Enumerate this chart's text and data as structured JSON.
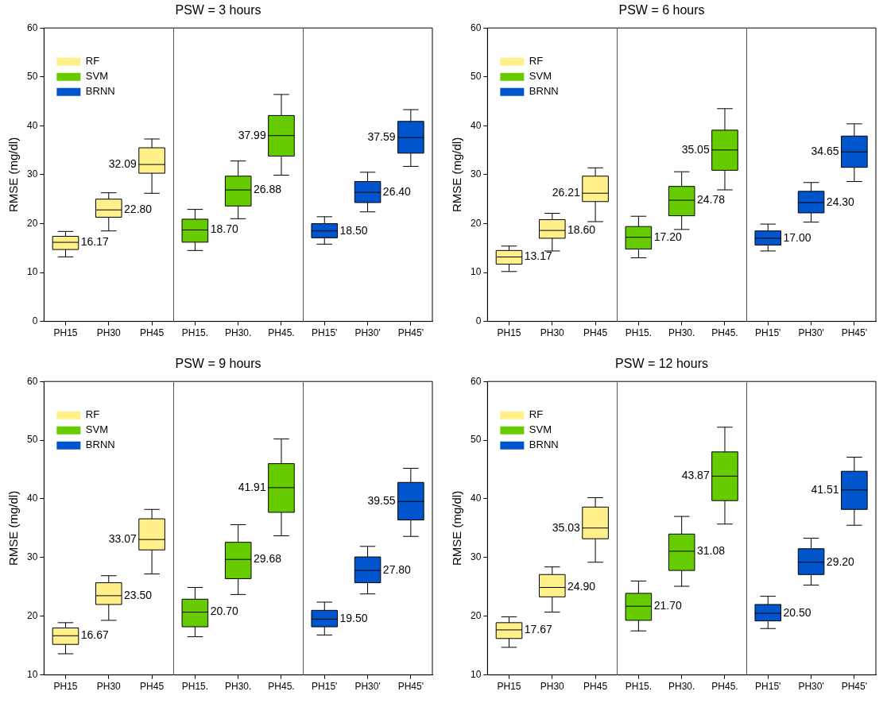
{
  "chart_data": [
    {
      "type": "box",
      "title": "PSW = 3 hours",
      "ylabel": "RMSE (mg/dl)",
      "categories": [
        "PH15",
        "PH30",
        "PH45",
        "PH15.",
        "PH30.",
        "PH45.",
        "PH15'",
        "PH30'",
        "PH45'"
      ],
      "ylim": [
        0,
        60
      ],
      "yticks": [
        0,
        10,
        20,
        30,
        40,
        50,
        60
      ],
      "legend": "top left",
      "series": [
        {
          "name": "RF",
          "color": "#fff08a",
          "boxes": [
            {
              "low": 13.2,
              "q1": 14.7,
              "median": 16.17,
              "q3": 17.4,
              "high": 18.4
            },
            {
              "low": 18.5,
              "q1": 21.3,
              "median": 22.8,
              "q3": 25.0,
              "high": 26.3
            },
            {
              "low": 26.2,
              "q1": 30.3,
              "median": 32.09,
              "q3": 35.5,
              "high": 37.3
            },
            null,
            null,
            null,
            null,
            null,
            null
          ],
          "value_labels": [
            "16.17",
            "22.80",
            "32.09",
            null,
            null,
            null,
            null,
            null,
            null
          ]
        },
        {
          "name": "SVM",
          "color": "#66cc00",
          "boxes": [
            null,
            null,
            null,
            {
              "low": 14.5,
              "q1": 16.2,
              "median": 18.7,
              "q3": 20.9,
              "high": 22.9
            },
            {
              "low": 21.0,
              "q1": 23.6,
              "median": 26.88,
              "q3": 29.7,
              "high": 32.8
            },
            {
              "low": 29.9,
              "q1": 33.8,
              "median": 37.99,
              "q3": 42.1,
              "high": 46.4
            },
            null,
            null,
            null
          ],
          "value_labels": [
            null,
            null,
            null,
            "18.70",
            "26.88",
            "37.99",
            null,
            null,
            null
          ]
        },
        {
          "name": "BRNN",
          "color": "#0055cc",
          "boxes": [
            null,
            null,
            null,
            null,
            null,
            null,
            {
              "low": 15.8,
              "q1": 17.1,
              "median": 18.5,
              "q3": 20.0,
              "high": 21.4
            },
            {
              "low": 22.4,
              "q1": 24.3,
              "median": 26.4,
              "q3": 28.6,
              "high": 30.5
            },
            {
              "low": 31.7,
              "q1": 34.4,
              "median": 37.59,
              "q3": 40.9,
              "high": 43.3
            }
          ],
          "value_labels": [
            null,
            null,
            null,
            null,
            null,
            null,
            "18.50",
            "26.40",
            "37.59"
          ]
        }
      ]
    },
    {
      "type": "box",
      "title": "PSW = 6 hours",
      "ylabel": "RMSE (mg/dl)",
      "categories": [
        "PH15",
        "PH30",
        "PH45",
        "PH15.",
        "PH30.",
        "PH45.",
        "PH15'",
        "PH30'",
        "PH45'"
      ],
      "ylim": [
        0,
        60
      ],
      "yticks": [
        0,
        10,
        20,
        30,
        40,
        50,
        60
      ],
      "legend": "top left",
      "series": [
        {
          "name": "RF",
          "color": "#fff08a",
          "boxes": [
            {
              "low": 10.2,
              "q1": 11.7,
              "median": 13.17,
              "q3": 14.5,
              "high": 15.4
            },
            {
              "low": 14.4,
              "q1": 17.0,
              "median": 18.6,
              "q3": 20.8,
              "high": 22.1
            },
            {
              "low": 20.4,
              "q1": 24.5,
              "median": 26.21,
              "q3": 29.7,
              "high": 31.4
            },
            null,
            null,
            null,
            null,
            null,
            null
          ],
          "value_labels": [
            "13.17",
            "18.60",
            "26.21",
            null,
            null,
            null,
            null,
            null,
            null
          ]
        },
        {
          "name": "SVM",
          "color": "#66cc00",
          "boxes": [
            null,
            null,
            null,
            {
              "low": 13.0,
              "q1": 14.8,
              "median": 17.2,
              "q3": 19.4,
              "high": 21.5
            },
            {
              "low": 18.8,
              "q1": 21.6,
              "median": 24.78,
              "q3": 27.6,
              "high": 30.6
            },
            {
              "low": 26.9,
              "q1": 30.9,
              "median": 35.05,
              "q3": 39.1,
              "high": 43.5
            },
            null,
            null,
            null
          ],
          "value_labels": [
            null,
            null,
            null,
            "17.20",
            "24.78",
            "35.05",
            null,
            null,
            null
          ]
        },
        {
          "name": "BRNN",
          "color": "#0055cc",
          "boxes": [
            null,
            null,
            null,
            null,
            null,
            null,
            {
              "low": 14.4,
              "q1": 15.6,
              "median": 17.0,
              "q3": 18.5,
              "high": 19.9
            },
            {
              "low": 20.3,
              "q1": 22.2,
              "median": 24.3,
              "q3": 26.6,
              "high": 28.4
            },
            {
              "low": 28.6,
              "q1": 31.5,
              "median": 34.65,
              "q3": 37.9,
              "high": 40.4
            }
          ],
          "value_labels": [
            null,
            null,
            null,
            null,
            null,
            null,
            "17.00",
            "24.30",
            "34.65"
          ]
        }
      ]
    },
    {
      "type": "box",
      "title": "PSW = 9 hours",
      "ylabel": "RMSE (mg/dl)",
      "categories": [
        "PH15",
        "PH30",
        "PH45",
        "PH15.",
        "PH30.",
        "PH45.",
        "PH15'",
        "PH30'",
        "PH45'"
      ],
      "ylim": [
        10,
        60
      ],
      "yticks": [
        10,
        20,
        30,
        40,
        50,
        60
      ],
      "legend": "top left",
      "series": [
        {
          "name": "RF",
          "color": "#fff08a",
          "boxes": [
            {
              "low": 13.6,
              "q1": 15.2,
              "median": 16.67,
              "q3": 18.0,
              "high": 18.9
            },
            {
              "low": 19.3,
              "q1": 22.0,
              "median": 23.5,
              "q3": 25.7,
              "high": 26.9
            },
            {
              "low": 27.2,
              "q1": 31.3,
              "median": 33.07,
              "q3": 36.6,
              "high": 38.2
            },
            null,
            null,
            null,
            null,
            null,
            null
          ],
          "value_labels": [
            "16.67",
            "23.50",
            "33.07",
            null,
            null,
            null,
            null,
            null,
            null
          ]
        },
        {
          "name": "SVM",
          "color": "#66cc00",
          "boxes": [
            null,
            null,
            null,
            {
              "low": 16.5,
              "q1": 18.2,
              "median": 20.7,
              "q3": 22.9,
              "high": 24.9
            },
            {
              "low": 23.7,
              "q1": 26.4,
              "median": 29.68,
              "q3": 32.6,
              "high": 35.6
            },
            {
              "low": 33.7,
              "q1": 37.7,
              "median": 41.91,
              "q3": 46.0,
              "high": 50.2
            },
            null,
            null,
            null
          ],
          "value_labels": [
            null,
            null,
            null,
            "20.70",
            "29.68",
            "41.91",
            null,
            null,
            null
          ]
        },
        {
          "name": "BRNN",
          "color": "#0055cc",
          "boxes": [
            null,
            null,
            null,
            null,
            null,
            null,
            {
              "low": 16.8,
              "q1": 18.2,
              "median": 19.5,
              "q3": 21.0,
              "high": 22.4
            },
            {
              "low": 23.8,
              "q1": 25.7,
              "median": 27.8,
              "q3": 30.1,
              "high": 31.9
            },
            {
              "low": 33.6,
              "q1": 36.4,
              "median": 39.55,
              "q3": 42.8,
              "high": 45.2
            }
          ],
          "value_labels": [
            null,
            null,
            null,
            null,
            null,
            null,
            "19.50",
            "27.80",
            "39.55"
          ]
        }
      ]
    },
    {
      "type": "box",
      "title": "PSW = 12 hours",
      "ylabel": "RMSE (mg/dl)",
      "categories": [
        "PH15",
        "PH30",
        "PH45",
        "PH15.",
        "PH30.",
        "PH45.",
        "PH15'",
        "PH30'",
        "PH45'"
      ],
      "ylim": [
        10,
        60
      ],
      "yticks": [
        10,
        20,
        30,
        40,
        50,
        60
      ],
      "legend": "top left",
      "series": [
        {
          "name": "RF",
          "color": "#fff08a",
          "boxes": [
            {
              "low": 14.7,
              "q1": 16.2,
              "median": 17.67,
              "q3": 18.9,
              "high": 19.9
            },
            {
              "low": 20.7,
              "q1": 23.3,
              "median": 24.9,
              "q3": 27.1,
              "high": 28.4
            },
            {
              "low": 29.2,
              "q1": 33.2,
              "median": 35.03,
              "q3": 38.6,
              "high": 40.2
            },
            null,
            null,
            null,
            null,
            null,
            null
          ],
          "value_labels": [
            "17.67",
            "24.90",
            "35.03",
            null,
            null,
            null,
            null,
            null,
            null
          ]
        },
        {
          "name": "SVM",
          "color": "#66cc00",
          "boxes": [
            null,
            null,
            null,
            {
              "low": 17.5,
              "q1": 19.3,
              "median": 21.7,
              "q3": 23.9,
              "high": 26.0
            },
            {
              "low": 25.1,
              "q1": 27.8,
              "median": 31.08,
              "q3": 34.0,
              "high": 37.0
            },
            {
              "low": 35.7,
              "q1": 39.7,
              "median": 43.87,
              "q3": 48.0,
              "high": 52.2
            },
            null,
            null,
            null
          ],
          "value_labels": [
            null,
            null,
            null,
            "21.70",
            "31.08",
            "43.87",
            null,
            null,
            null
          ]
        },
        {
          "name": "BRNN",
          "color": "#0055cc",
          "boxes": [
            null,
            null,
            null,
            null,
            null,
            null,
            {
              "low": 17.9,
              "q1": 19.2,
              "median": 20.5,
              "q3": 22.0,
              "high": 23.4
            },
            {
              "low": 25.3,
              "q1": 27.1,
              "median": 29.2,
              "q3": 31.5,
              "high": 33.3
            },
            {
              "low": 35.5,
              "q1": 38.2,
              "median": 41.51,
              "q3": 44.7,
              "high": 47.1
            }
          ],
          "value_labels": [
            null,
            null,
            null,
            null,
            null,
            null,
            "20.50",
            "29.20",
            "41.51"
          ]
        }
      ]
    }
  ]
}
